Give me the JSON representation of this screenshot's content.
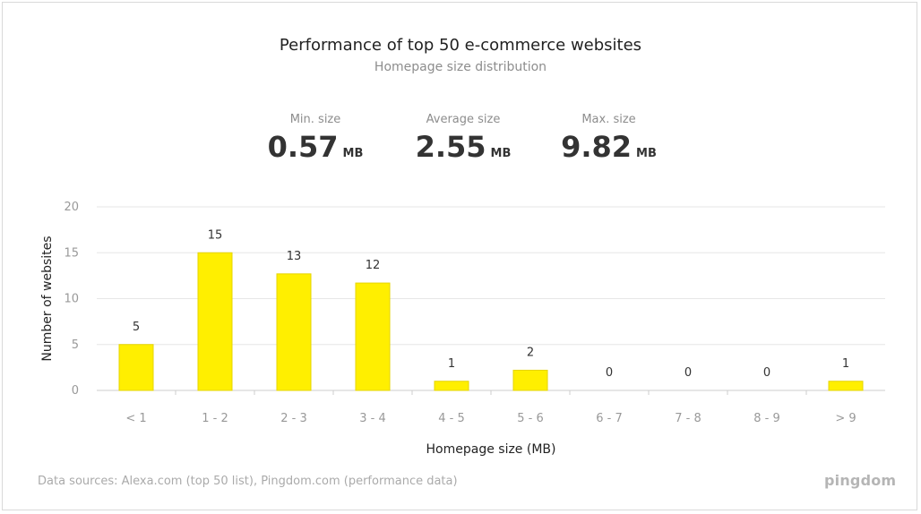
{
  "title": "Performance of top 50 e-commerce websites",
  "subtitle": "Homepage size distribution",
  "stats": [
    {
      "label": "Min. size",
      "value": "0.57",
      "unit": "MB"
    },
    {
      "label": "Average size",
      "value": "2.55",
      "unit": "MB"
    },
    {
      "label": "Max. size",
      "value": "9.82",
      "unit": "MB"
    }
  ],
  "footer": "Data sources: Alexa.com (top 50 list), Pingdom.com (performance data)",
  "logo": "pingdom",
  "colors": {
    "bar": "#FFEF00",
    "bar_border": "#e6d400",
    "grid": "#e6e6e6",
    "tick": "#999999"
  },
  "chart_data": {
    "type": "bar",
    "categories": [
      "< 1",
      "1 - 2",
      "2 - 3",
      "3 - 4",
      "4 - 5",
      "5 - 6",
      "6 - 7",
      "7 - 8",
      "8 - 9",
      "> 9"
    ],
    "values": [
      5,
      15,
      13,
      12,
      1,
      2,
      0,
      0,
      0,
      1
    ],
    "bar_values": [
      5,
      15,
      12.7,
      11.7,
      1,
      2.2,
      0,
      0,
      0,
      1
    ],
    "data_labels": [
      "5",
      "15",
      "13",
      "12",
      "1",
      "2",
      "0",
      "0",
      "0",
      "1"
    ],
    "ylim": [
      0,
      20
    ],
    "yticks": [
      "0",
      "5",
      "10",
      "15",
      "20"
    ],
    "xlabel": "Homepage size (MB)",
    "ylabel": "Number of websites",
    "grid": true,
    "legend": "none"
  }
}
